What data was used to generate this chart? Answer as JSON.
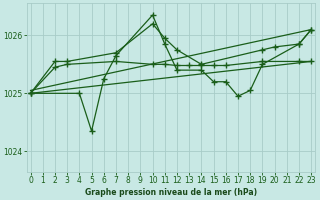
{
  "bg_color": "#c8e8e4",
  "grid_color": "#a8ccc8",
  "line_color": "#1a5e1a",
  "title": "Graphe pression niveau de la mer (hPa)",
  "title_color": "#1a4a1a",
  "xlim": [
    -0.3,
    23.3
  ],
  "ylim": [
    1023.65,
    1026.55
  ],
  "yticks": [
    1024,
    1025,
    1026
  ],
  "xticks": [
    0,
    1,
    2,
    3,
    4,
    5,
    6,
    7,
    8,
    9,
    10,
    11,
    12,
    13,
    14,
    15,
    16,
    17,
    18,
    19,
    20,
    21,
    22,
    23
  ],
  "series1": {
    "x": [
      0,
      4,
      5,
      6,
      7,
      10,
      11,
      12,
      14,
      15,
      16,
      17,
      18,
      19,
      22,
      23
    ],
    "y": [
      1025.0,
      1025.0,
      1024.35,
      1025.25,
      1025.65,
      1026.35,
      1025.85,
      1025.4,
      1025.4,
      1025.2,
      1025.2,
      1024.95,
      1025.05,
      1025.5,
      1025.85,
      1026.1
    ]
  },
  "series2": {
    "x": [
      0,
      2,
      3,
      7,
      10,
      11,
      12,
      14,
      19,
      20,
      22,
      23
    ],
    "y": [
      1025.0,
      1025.55,
      1025.55,
      1025.7,
      1026.2,
      1025.95,
      1025.75,
      1025.5,
      1025.75,
      1025.8,
      1025.85,
      1026.1
    ]
  },
  "series3": {
    "x": [
      0,
      23
    ],
    "y": [
      1025.0,
      1025.55
    ]
  },
  "series4": {
    "x": [
      0,
      23
    ],
    "y": [
      1025.05,
      1026.1
    ]
  },
  "series5": {
    "x": [
      0,
      2,
      3,
      7,
      10,
      11,
      12,
      13,
      14,
      15,
      16,
      19,
      22,
      23
    ],
    "y": [
      1025.0,
      1025.45,
      1025.5,
      1025.55,
      1025.5,
      1025.5,
      1025.48,
      1025.48,
      1025.48,
      1025.48,
      1025.48,
      1025.55,
      1025.55,
      1025.55
    ]
  }
}
